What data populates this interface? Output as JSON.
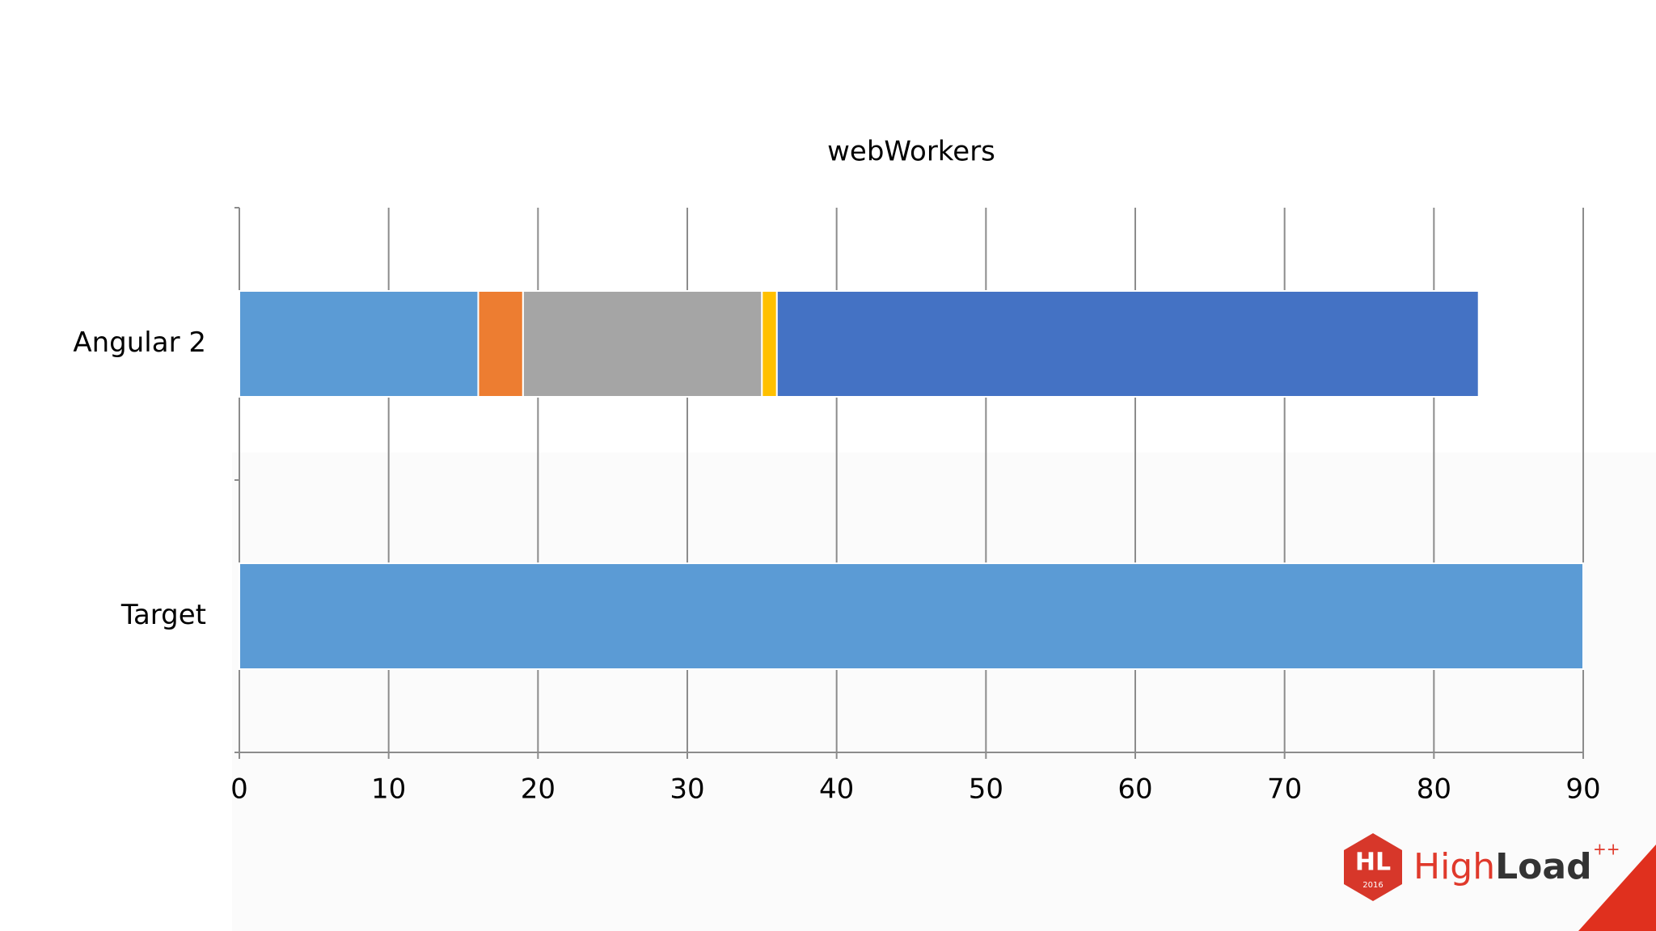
{
  "chart_data": {
    "type": "stacked-bar",
    "orientation": "horizontal",
    "title": "webWorkers",
    "categories": [
      "Angular 2",
      "Target"
    ],
    "series": [
      {
        "color": "#5b9bd5",
        "values": [
          16,
          90
        ]
      },
      {
        "color": "#ed7d31",
        "values": [
          3,
          null
        ]
      },
      {
        "color": "#a5a5a5",
        "values": [
          16,
          null
        ]
      },
      {
        "color": "#ffc000",
        "values": [
          1,
          null
        ]
      },
      {
        "color": "#4472c4",
        "values": [
          47,
          null
        ]
      }
    ],
    "xlim": [
      0,
      90
    ],
    "xticks": [
      0,
      10,
      20,
      30,
      40,
      50,
      60,
      70,
      80,
      90
    ],
    "grid": true
  },
  "logo": {
    "mark": "HL",
    "year": "2016",
    "name_light": "High",
    "name_bold": "Load",
    "sup": "++"
  }
}
